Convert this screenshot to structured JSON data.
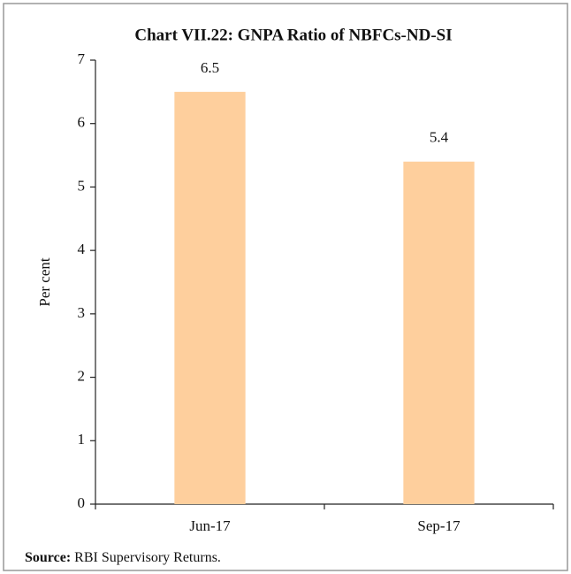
{
  "chart_data": {
    "type": "bar",
    "title": "Chart VII.22: GNPA Ratio of NBFCs-ND-SI",
    "y_label": "Per cent",
    "categories": [
      "Jun-17",
      "Sep-17"
    ],
    "values": [
      6.5,
      5.4
    ],
    "color": "#fecf9d",
    "ylim": [
      0,
      7
    ],
    "yticks": [
      0,
      1,
      2,
      3,
      4,
      5,
      6,
      7
    ],
    "grid": false,
    "source": {
      "label": "Source:",
      "text": "RBI Supervisory Returns."
    }
  }
}
